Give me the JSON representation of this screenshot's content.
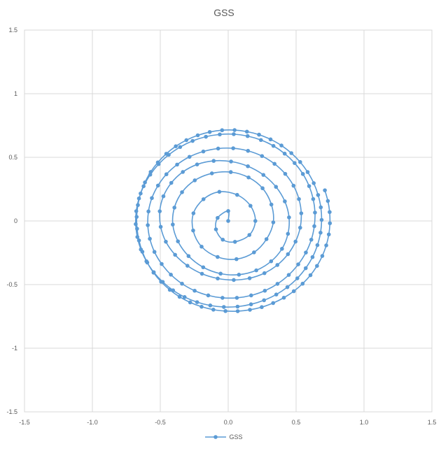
{
  "chart_data": {
    "type": "scatter",
    "title": "GSS",
    "xlabel": "",
    "ylabel": "",
    "xlim": [
      -1.5,
      1.5
    ],
    "ylim": [
      -1.5,
      1.5
    ],
    "x_ticks": [
      "-1.5",
      "-1.0",
      "-0.5",
      "0.0",
      "0.5",
      "1.0",
      "1.5"
    ],
    "y_ticks": [
      "1.5",
      "1",
      "0.5",
      "0",
      "-0.5",
      "-1",
      "-1.5"
    ],
    "x_tick_values": [
      -1.5,
      -1.0,
      -0.5,
      0.0,
      0.5,
      1.0,
      1.5
    ],
    "y_tick_values": [
      1.5,
      1,
      0.5,
      0,
      -0.5,
      -1,
      -1.5
    ],
    "grid": true,
    "legend_position": "bottom",
    "series": [
      {
        "name": "GSS",
        "color": "#5B9BD5",
        "marker": "circle",
        "line": true,
        "points": [
          [
            0.0,
            0.0
          ],
          [
            0.0,
            0.078
          ],
          [
            -0.078,
            0.024
          ],
          [
            -0.09,
            -0.066
          ],
          [
            -0.04,
            -0.147
          ],
          [
            0.05,
            -0.164
          ],
          [
            0.156,
            -0.11
          ],
          [
            0.2,
            0.0
          ],
          [
            0.164,
            0.119
          ],
          [
            0.066,
            0.205
          ],
          [
            -0.065,
            0.229
          ],
          [
            -0.182,
            0.171
          ],
          [
            -0.256,
            0.06
          ],
          [
            -0.258,
            -0.075
          ],
          [
            -0.196,
            -0.202
          ],
          [
            -0.078,
            -0.283
          ],
          [
            0.061,
            -0.3
          ],
          [
            0.19,
            -0.247
          ],
          [
            0.282,
            -0.143
          ],
          [
            0.332,
            -0.011
          ],
          [
            0.318,
            0.129
          ],
          [
            0.253,
            0.257
          ],
          [
            0.15,
            0.342
          ],
          [
            0.019,
            0.384
          ],
          [
            -0.12,
            0.374
          ],
          [
            -0.246,
            0.319
          ],
          [
            -0.34,
            0.226
          ],
          [
            -0.396,
            0.105
          ],
          [
            -0.408,
            -0.028
          ],
          [
            -0.37,
            -0.16
          ],
          [
            -0.292,
            -0.276
          ],
          [
            -0.184,
            -0.364
          ],
          [
            -0.056,
            -0.414
          ],
          [
            0.079,
            -0.422
          ],
          [
            0.207,
            -0.388
          ],
          [
            0.316,
            -0.317
          ],
          [
            0.396,
            -0.219
          ],
          [
            0.44,
            -0.101
          ],
          [
            0.448,
            0.028
          ],
          [
            0.417,
            0.154
          ],
          [
            0.352,
            0.268
          ],
          [
            0.259,
            0.362
          ],
          [
            0.145,
            0.43
          ],
          [
            0.021,
            0.467
          ],
          [
            -0.107,
            0.472
          ],
          [
            -0.229,
            0.444
          ],
          [
            -0.334,
            0.385
          ],
          [
            -0.419,
            0.299
          ],
          [
            -0.477,
            0.194
          ],
          [
            -0.504,
            0.076
          ],
          [
            -0.497,
            -0.046
          ],
          [
            -0.459,
            -0.163
          ],
          [
            -0.391,
            -0.266
          ],
          [
            -0.3,
            -0.352
          ],
          [
            -0.193,
            -0.415
          ],
          [
            -0.077,
            -0.452
          ],
          [
            0.041,
            -0.464
          ],
          [
            0.158,
            -0.45
          ],
          [
            0.267,
            -0.41
          ],
          [
            0.362,
            -0.346
          ],
          [
            0.44,
            -0.261
          ],
          [
            0.496,
            -0.162
          ],
          [
            0.53,
            -0.053
          ],
          [
            0.538,
            0.06
          ],
          [
            0.521,
            0.172
          ],
          [
            0.481,
            0.277
          ],
          [
            0.42,
            0.37
          ],
          [
            0.341,
            0.449
          ],
          [
            0.249,
            0.51
          ],
          [
            0.146,
            0.551
          ],
          [
            0.037,
            0.571
          ],
          [
            -0.074,
            0.569
          ],
          [
            -0.183,
            0.546
          ],
          [
            -0.285,
            0.504
          ],
          [
            -0.376,
            0.443
          ],
          [
            -0.455,
            0.367
          ],
          [
            -0.517,
            0.278
          ],
          [
            -0.562,
            0.18
          ],
          [
            -0.587,
            0.075
          ],
          [
            -0.592,
            -0.033
          ],
          [
            -0.577,
            -0.14
          ],
          [
            -0.543,
            -0.243
          ],
          [
            -0.49,
            -0.338
          ],
          [
            -0.422,
            -0.422
          ],
          [
            -0.34,
            -0.493
          ],
          [
            -0.247,
            -0.548
          ],
          [
            -0.147,
            -0.585
          ],
          [
            -0.042,
            -0.604
          ],
          [
            0.064,
            -0.604
          ],
          [
            0.169,
            -0.585
          ],
          [
            0.27,
            -0.548
          ],
          [
            0.363,
            -0.494
          ],
          [
            0.446,
            -0.424
          ],
          [
            0.516,
            -0.341
          ],
          [
            0.572,
            -0.248
          ],
          [
            0.612,
            -0.147
          ],
          [
            0.634,
            -0.041
          ],
          [
            0.639,
            0.066
          ],
          [
            0.626,
            0.172
          ],
          [
            0.596,
            0.274
          ],
          [
            0.55,
            0.369
          ],
          [
            0.489,
            0.455
          ],
          [
            0.416,
            0.529
          ],
          [
            0.333,
            0.59
          ],
          [
            0.241,
            0.636
          ],
          [
            0.143,
            0.667
          ],
          [
            0.041,
            0.682
          ],
          [
            -0.062,
            0.68
          ],
          [
            -0.164,
            0.662
          ],
          [
            -0.262,
            0.629
          ],
          [
            -0.354,
            0.581
          ],
          [
            -0.438,
            0.52
          ],
          [
            -0.512,
            0.447
          ],
          [
            -0.574,
            0.364
          ],
          [
            -0.623,
            0.273
          ],
          [
            -0.657,
            0.177
          ],
          [
            -0.677,
            0.077
          ],
          [
            -0.681,
            -0.025
          ],
          [
            -0.669,
            -0.126
          ],
          [
            -0.643,
            -0.224
          ],
          [
            -0.602,
            -0.317
          ],
          [
            -0.548,
            -0.403
          ],
          [
            -0.482,
            -0.479
          ],
          [
            -0.406,
            -0.545
          ],
          [
            -0.321,
            -0.598
          ],
          [
            -0.229,
            -0.638
          ],
          [
            -0.132,
            -0.664
          ],
          [
            -0.032,
            -0.676
          ],
          [
            0.069,
            -0.673
          ],
          [
            0.168,
            -0.655
          ],
          [
            0.264,
            -0.623
          ],
          [
            0.354,
            -0.578
          ],
          [
            0.436,
            -0.52
          ],
          [
            0.509,
            -0.451
          ],
          [
            0.571,
            -0.371
          ],
          [
            0.621,
            -0.284
          ],
          [
            0.657,
            -0.19
          ],
          [
            0.68,
            -0.092
          ],
          [
            0.688,
            0.008
          ],
          [
            0.682,
            0.107
          ],
          [
            0.662,
            0.204
          ],
          [
            0.63,
            0.297
          ],
          [
            0.585,
            0.384
          ],
          [
            0.53,
            0.463
          ],
          [
            0.465,
            0.533
          ],
          [
            0.392,
            0.593
          ],
          [
            0.312,
            0.641
          ],
          [
            0.227,
            0.678
          ],
          [
            0.138,
            0.702
          ],
          [
            0.047,
            0.714
          ],
          [
            -0.045,
            0.713
          ],
          [
            -0.136,
            0.699
          ],
          [
            -0.224,
            0.673
          ],
          [
            -0.308,
            0.635
          ],
          [
            -0.386,
            0.587
          ],
          [
            -0.456,
            0.528
          ],
          [
            -0.518,
            0.46
          ],
          [
            -0.571,
            0.385
          ],
          [
            -0.613,
            0.303
          ],
          [
            -0.645,
            0.216
          ],
          [
            -0.665,
            0.125
          ],
          [
            -0.674,
            0.032
          ],
          [
            -0.671,
            -0.061
          ],
          [
            -0.657,
            -0.153
          ],
          [
            -0.632,
            -0.242
          ],
          [
            -0.596,
            -0.327
          ],
          [
            -0.55,
            -0.406
          ],
          [
            -0.494,
            -0.478
          ],
          [
            -0.43,
            -0.541
          ],
          [
            -0.358,
            -0.596
          ],
          [
            -0.28,
            -0.64
          ],
          [
            -0.196,
            -0.674
          ],
          [
            -0.109,
            -0.697
          ],
          [
            -0.02,
            -0.708
          ],
          [
            0.07,
            -0.709
          ],
          [
            0.16,
            -0.698
          ],
          [
            0.247,
            -0.677
          ],
          [
            0.331,
            -0.645
          ],
          [
            0.41,
            -0.603
          ],
          [
            0.483,
            -0.552
          ],
          [
            0.548,
            -0.493
          ],
          [
            0.606,
            -0.426
          ],
          [
            0.654,
            -0.353
          ],
          [
            0.693,
            -0.275
          ],
          [
            0.722,
            -0.192
          ],
          [
            0.741,
            -0.106
          ],
          [
            0.749,
            -0.018
          ],
          [
            0.747,
            0.07
          ],
          [
            0.734,
            0.157
          ],
          [
            0.712,
            0.241
          ]
        ]
      }
    ]
  },
  "legend": {
    "label": "GSS"
  }
}
